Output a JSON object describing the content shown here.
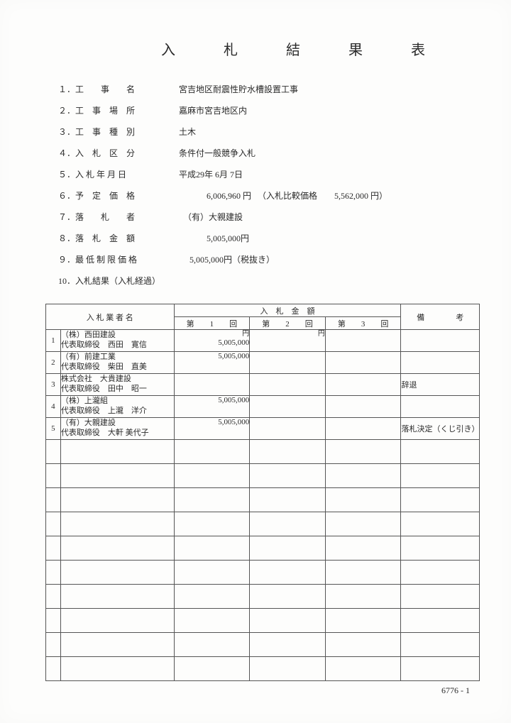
{
  "title": "入　札　結　果　表",
  "info": [
    {
      "label": "１．工　　事　　名",
      "value": "宮吉地区耐震性貯水槽設置工事"
    },
    {
      "label": "２．工　事　場　所",
      "value": "嘉麻市宮吉地区内"
    },
    {
      "label": "３．工　事　種　別",
      "value": "土木"
    },
    {
      "label": "４．入　札　区　分",
      "value": "条件付一般競争入札"
    },
    {
      "label": "５．入 札 年 月 日",
      "value": "平成29年 6月 7日"
    },
    {
      "label": "６．予　定　価　格",
      "value": "             6,006,960 円 　（入札比較価格　　5,562,000 円）"
    },
    {
      "label": "７．落　　札　　者",
      "value": "  （有）大親建設"
    },
    {
      "label": "８．落　札　金　額",
      "value": "             5,005,000円"
    },
    {
      "label": "９．最 低 制 限 価 格",
      "value": "     5,005,000円（税抜き）"
    },
    {
      "label": "10．入札結果（入札経過）",
      "value": ""
    }
  ],
  "table": {
    "header": {
      "bidder": "入 札 業 者 名",
      "amount_group": "入　札　金　額",
      "remarks": "備　　　　考",
      "round1": "第　　1　　回",
      "round2": "第　　2　　回",
      "round3": "第　　3　　回"
    },
    "unit": "円",
    "rows": [
      {
        "num": "1",
        "name1": "（株）西田建設",
        "name2": "代表取締役　西田　寛信",
        "r1": "5,005,000",
        "r2": "",
        "r3": "",
        "remark": ""
      },
      {
        "num": "2",
        "name1": "（有）前建工業",
        "name2": "代表取締役　柴田　直美",
        "r1": "5,005,000",
        "r2": "",
        "r3": "",
        "remark": ""
      },
      {
        "num": "3",
        "name1": "株式会社　大貴建設",
        "name2": "代表取締役　田中　昭一",
        "r1": "",
        "r2": "",
        "r3": "",
        "remark": "辞退"
      },
      {
        "num": "4",
        "name1": "（株）上瀧組",
        "name2": "代表取締役　上瀧　洋介",
        "r1": "5,005,000",
        "r2": "",
        "r3": "",
        "remark": ""
      },
      {
        "num": "5",
        "name1": "（有）大親建設",
        "name2": "代表取締役　大軒 美代子",
        "r1": "5,005,000",
        "r2": "",
        "r3": "",
        "remark": "落札決定（くじ引き）"
      }
    ],
    "empty_rows": 10,
    "colors": {
      "border": "#555555",
      "text": "#2a2a2a",
      "background": "#fdfdfc"
    }
  },
  "page_number": "6776 - 1"
}
